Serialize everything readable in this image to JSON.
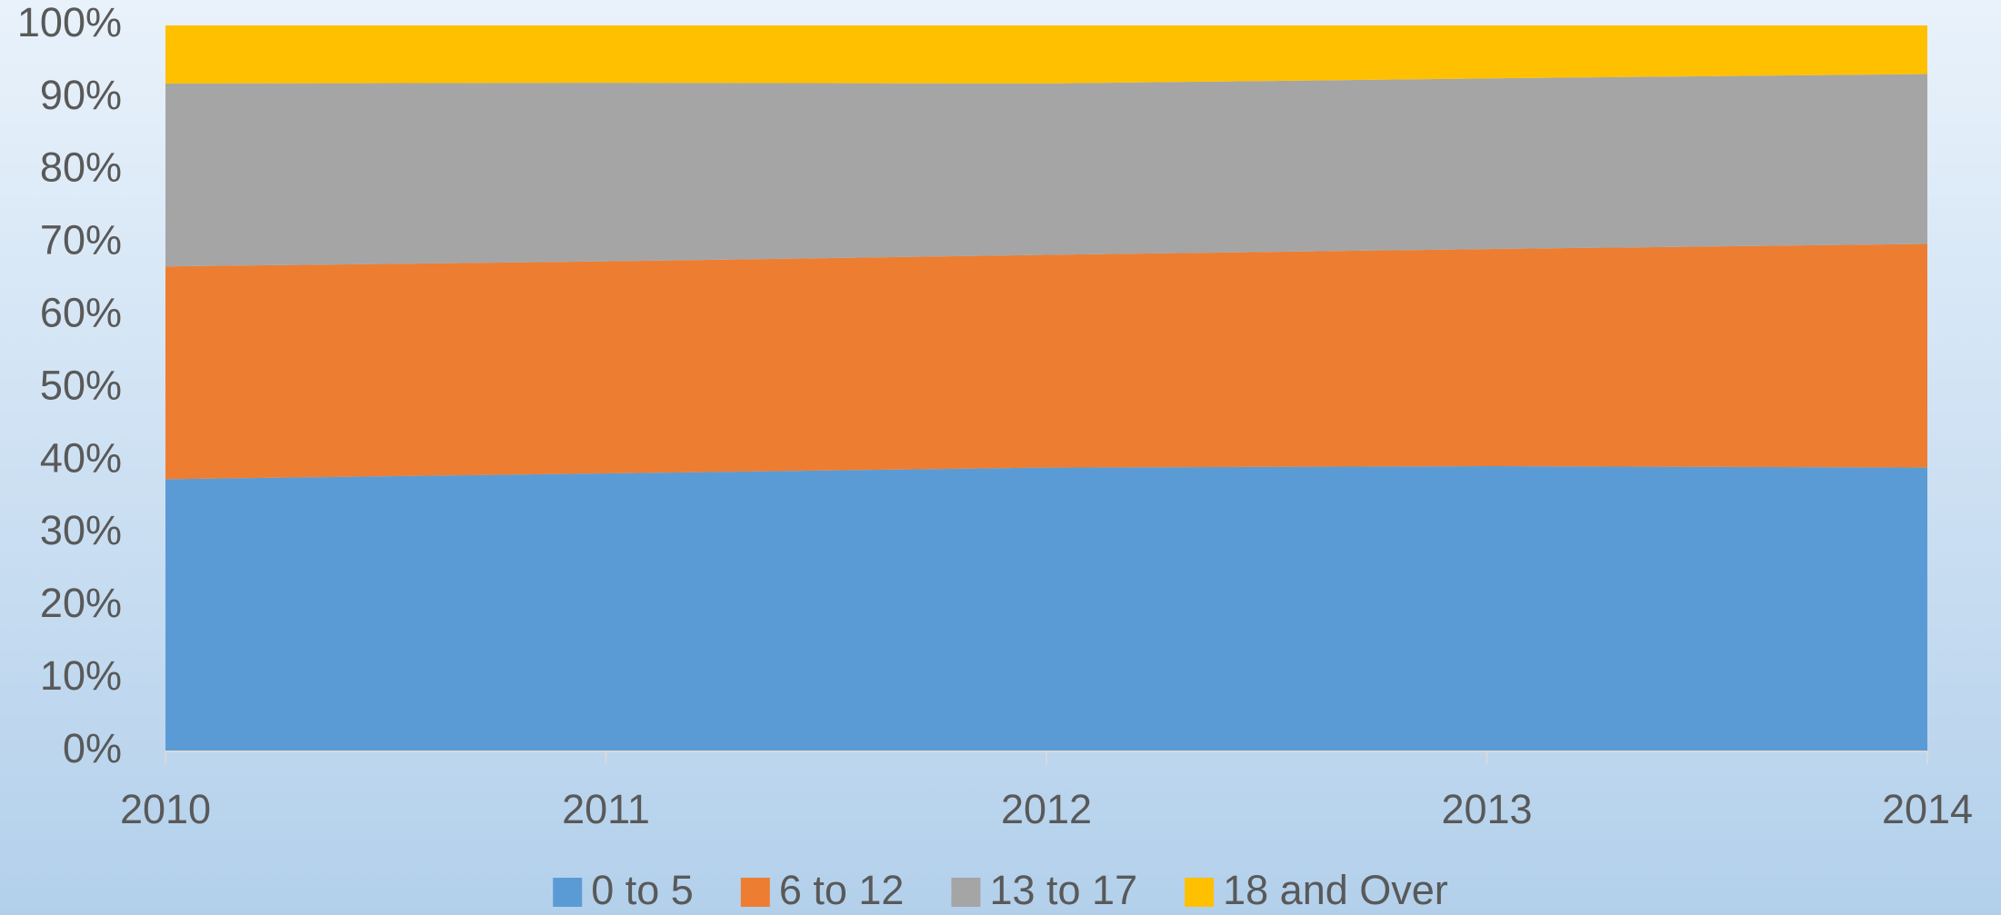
{
  "chart_data": {
    "type": "stacked_area_percent",
    "categories": [
      "2010",
      "2011",
      "2012",
      "2013",
      "2014"
    ],
    "series": [
      {
        "name": "0 to 5",
        "color": "#5b9bd5",
        "values": [
          37.5,
          38.3,
          39.1,
          39.3,
          39.1
        ]
      },
      {
        "name": "6 to 12",
        "color": "#ed7d31",
        "values": [
          29.3,
          29.2,
          29.3,
          29.9,
          30.8
        ]
      },
      {
        "name": "13 to 17",
        "color": "#a5a5a5",
        "values": [
          25.2,
          24.6,
          23.6,
          23.5,
          23.4
        ]
      },
      {
        "name": "18 and Over",
        "color": "#ffc000",
        "values": [
          8.0,
          7.9,
          8.0,
          7.3,
          6.7
        ]
      }
    ],
    "ylim": [
      0,
      100
    ],
    "yticks": [
      {
        "value": 0,
        "label": "0%"
      },
      {
        "value": 10,
        "label": "10%"
      },
      {
        "value": 20,
        "label": "20%"
      },
      {
        "value": 30,
        "label": "30%"
      },
      {
        "value": 40,
        "label": "40%"
      },
      {
        "value": 50,
        "label": "50%"
      },
      {
        "value": 60,
        "label": "60%"
      },
      {
        "value": 70,
        "label": "70%"
      },
      {
        "value": 80,
        "label": "80%"
      },
      {
        "value": 90,
        "label": "90%"
      },
      {
        "value": 100,
        "label": "100%"
      }
    ],
    "legend": "bottom"
  }
}
